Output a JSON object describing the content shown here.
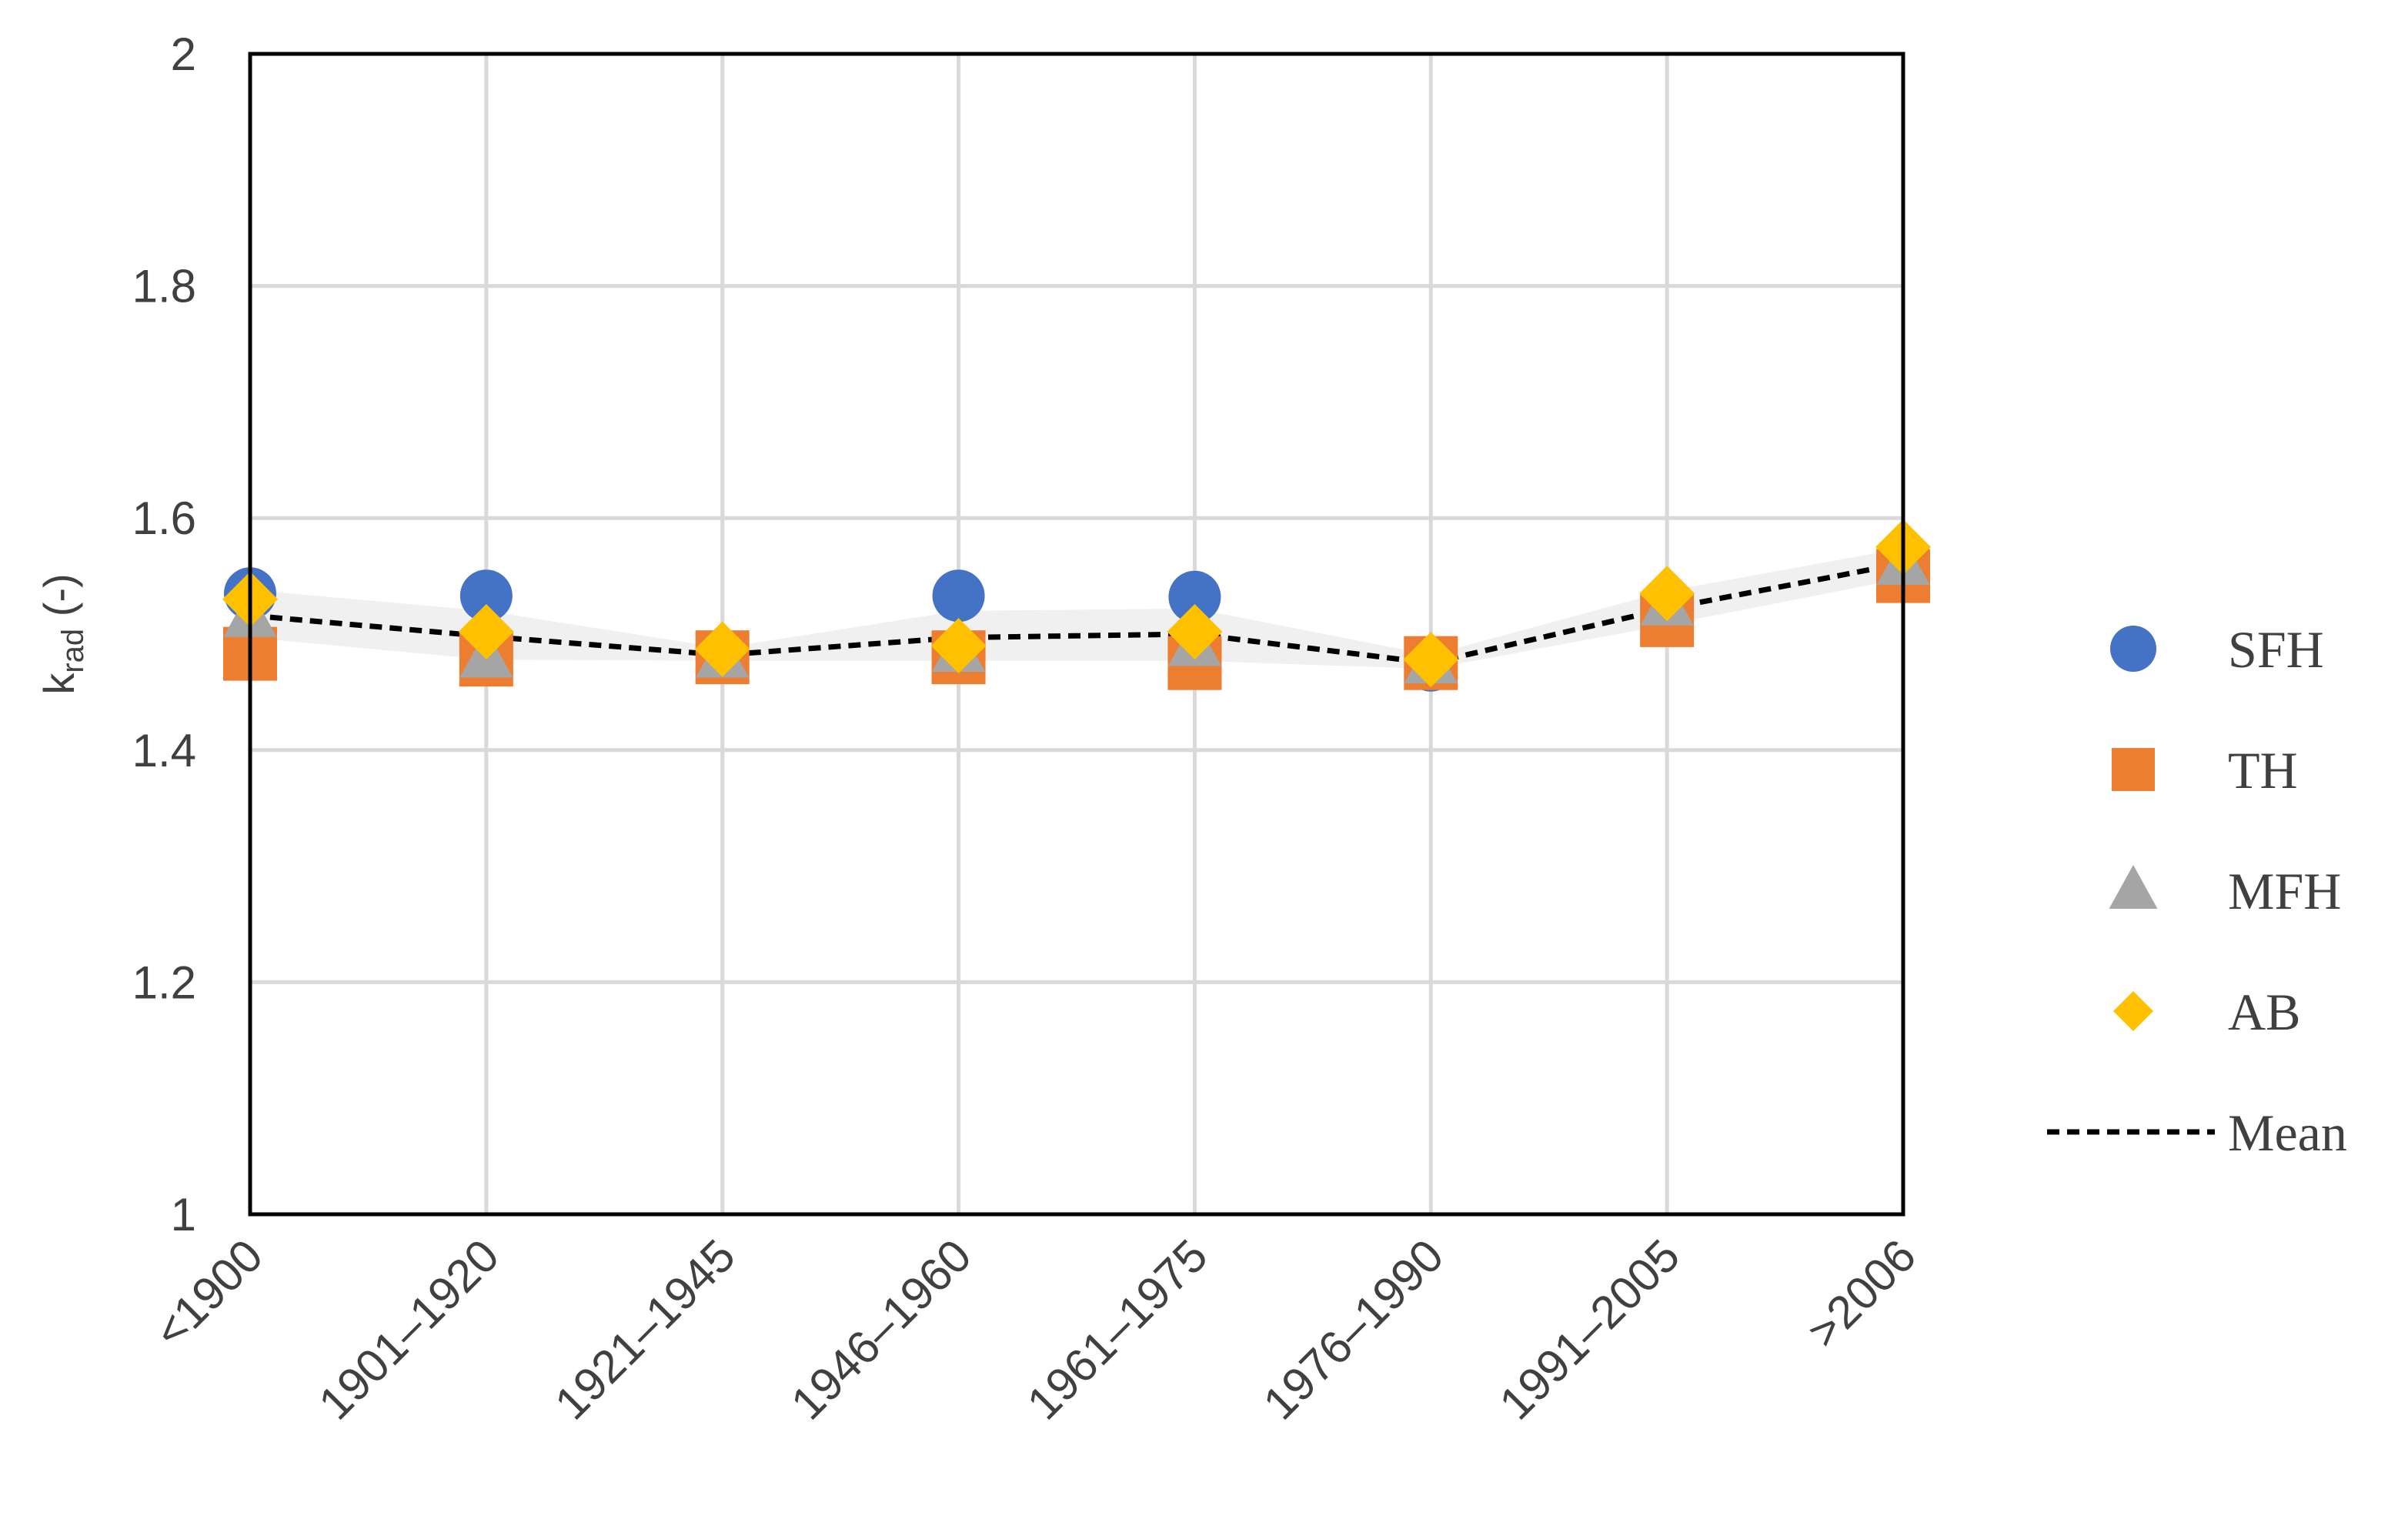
{
  "chart_data": {
    "type": "scatter",
    "title": "",
    "xlabel": "",
    "ylabel": "k",
    "ylabel_sub": "rad",
    "ylabel_suffix": " (-)",
    "categories": [
      "<1900",
      "1901–1920",
      "1921–1945",
      "1946–1960",
      "1961–1975",
      "1976–1990",
      "1991–2005",
      ">2006"
    ],
    "ylim": [
      1,
      2
    ],
    "yticks": [
      1,
      1.2,
      1.4,
      1.6,
      1.8,
      2
    ],
    "ytick_labels": [
      "1",
      "1.2",
      "1.4",
      "1.6",
      "1.8",
      "2"
    ],
    "grid": true,
    "legend_position": "right",
    "series": [
      {
        "name": "SFH",
        "marker": "circle",
        "color": "#4472C4",
        "values": [
          1.535,
          1.533,
          1.48,
          1.533,
          1.532,
          1.473,
          1.515,
          1.56
        ]
      },
      {
        "name": "TH",
        "marker": "square",
        "color": "#ED7D31",
        "values": [
          1.483,
          1.478,
          1.48,
          1.48,
          1.475,
          1.475,
          1.512,
          1.55
        ]
      },
      {
        "name": "MFH",
        "marker": "triangle",
        "color": "#A5A5A5",
        "values": [
          1.515,
          1.48,
          1.48,
          1.485,
          1.49,
          1.475,
          1.525,
          1.56
        ]
      },
      {
        "name": "AB",
        "marker": "diamond",
        "color": "#FFC000",
        "values": [
          1.53,
          1.502,
          1.487,
          1.49,
          1.502,
          1.478,
          1.535,
          1.575
        ]
      },
      {
        "name": "Mean",
        "marker": "dashed-line",
        "color": "#000000",
        "values": [
          1.516,
          1.498,
          1.482,
          1.497,
          1.5,
          1.475,
          1.522,
          1.561
        ]
      }
    ],
    "band": {
      "color": "#F0F0F0",
      "lower": [
        1.497,
        1.478,
        1.477,
        1.477,
        1.477,
        1.47,
        1.508,
        1.548
      ],
      "upper": [
        1.538,
        1.52,
        1.488,
        1.52,
        1.522,
        1.482,
        1.537,
        1.574
      ]
    }
  }
}
